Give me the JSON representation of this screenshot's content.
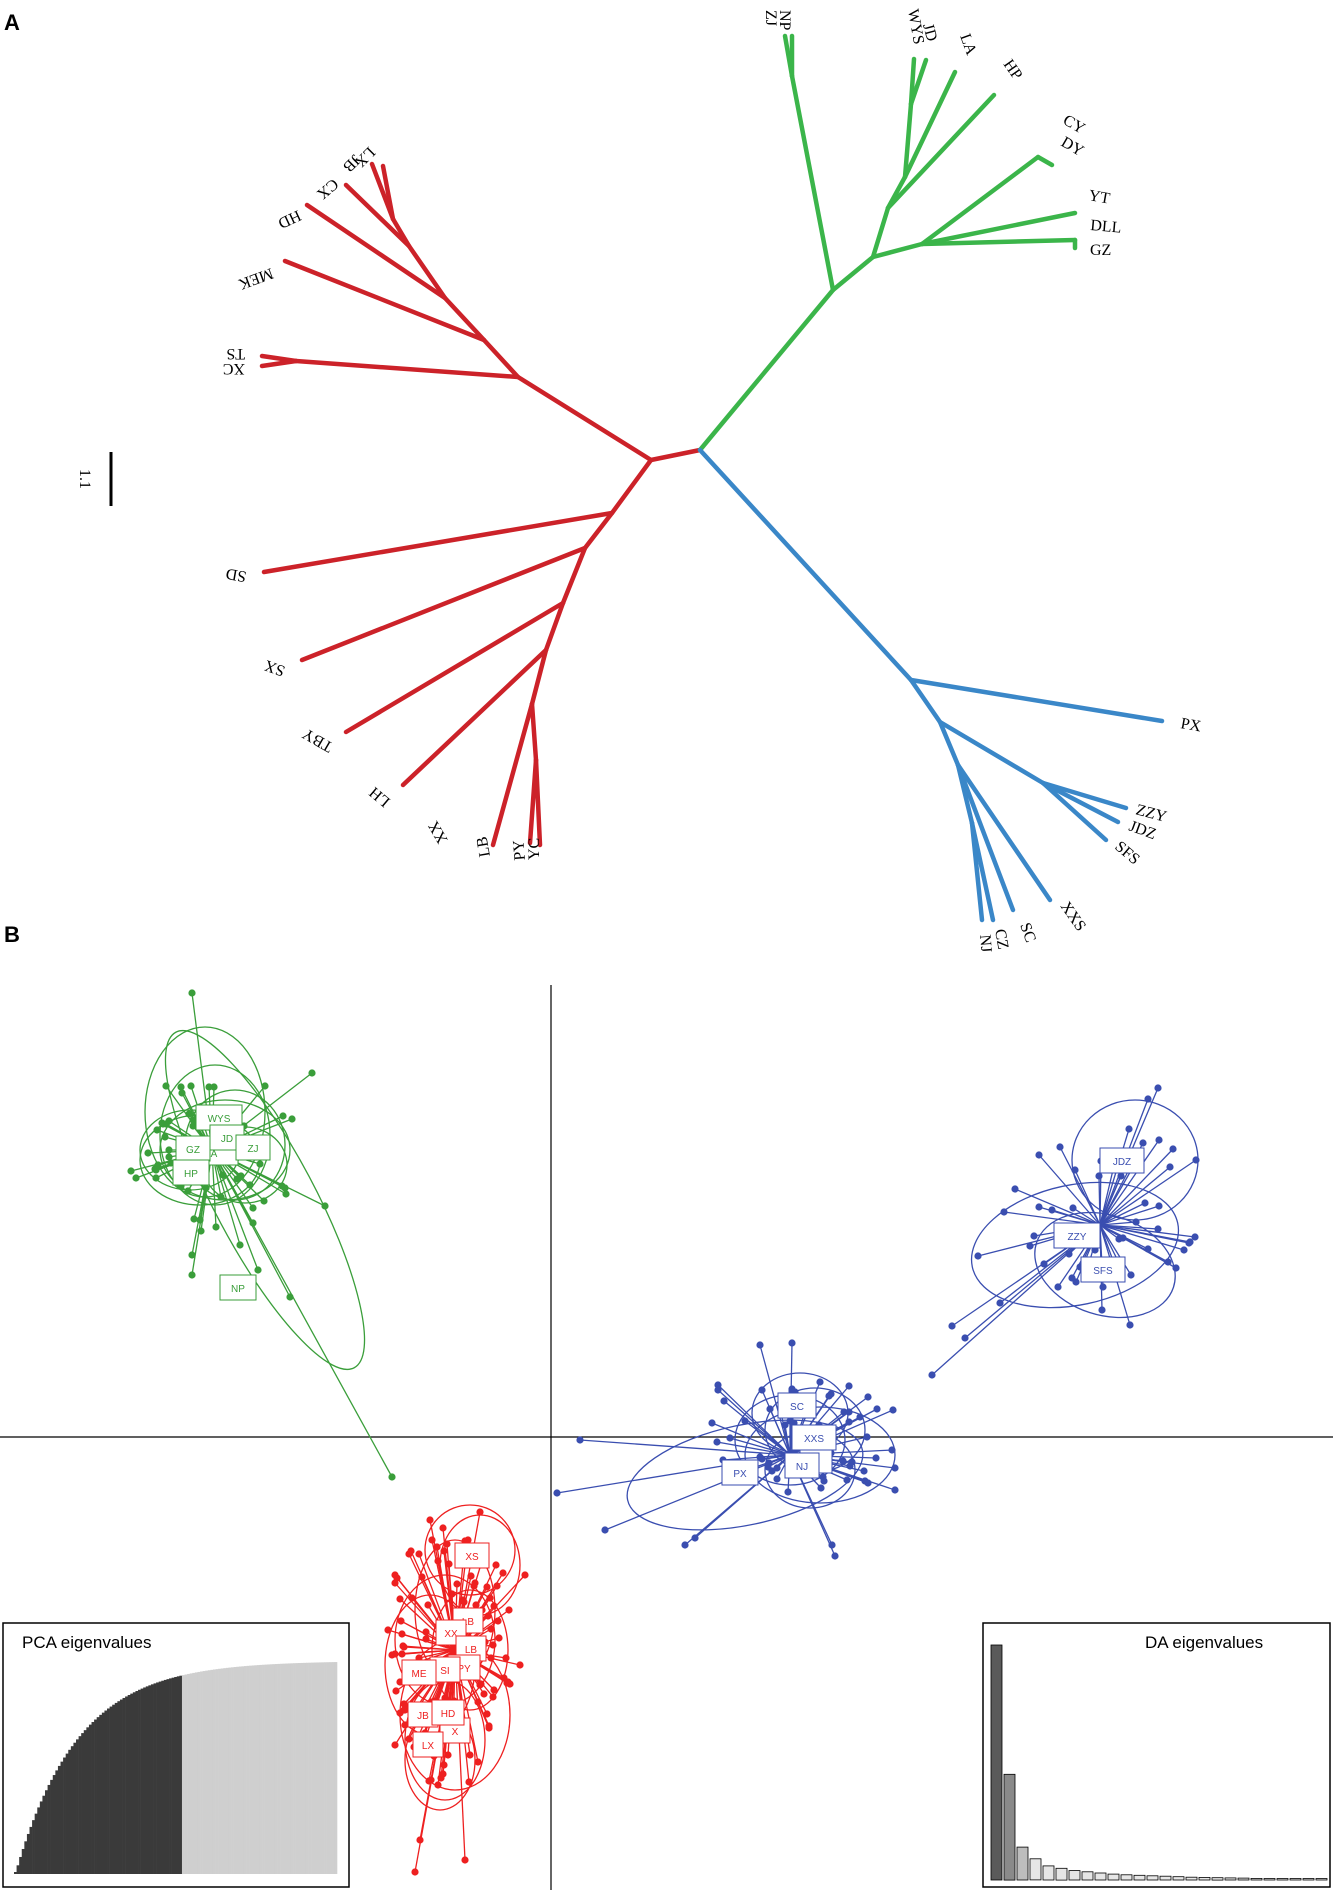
{
  "panels": {
    "a_label": "A",
    "b_label": "B"
  },
  "scale_bar": {
    "label": "1.1"
  },
  "colors": {
    "red": "#cc2229",
    "green": "#3bb54a",
    "blue": "#3a87c8",
    "dapc_red": "#ee2020",
    "dapc_green": "#3a9e3a",
    "dapc_blue": "#3a4eb0",
    "pca_dark": "#3a3a3a",
    "pca_light": "#cfcfcf"
  },
  "tree": {
    "red_tips": [
      "LX",
      "JB",
      "CX",
      "HD",
      "MEK",
      "TS",
      "XC",
      "SD",
      "SX",
      "TBY",
      "LH",
      "XX",
      "LB",
      "PY",
      "YC"
    ],
    "green_tips": [
      "NP",
      "ZJ",
      "WYS",
      "JD",
      "LA",
      "HP",
      "CY",
      "DY",
      "YT",
      "DLL",
      "GZ"
    ],
    "blue_tips": [
      "PX",
      "ZZY",
      "JDZ",
      "SFS",
      "XXS",
      "SC",
      "CZ",
      "NJ"
    ]
  },
  "dapc": {
    "green_groups": [
      "WYS",
      "JD",
      "GZ",
      "ZJ",
      "HP",
      "A",
      "NP"
    ],
    "blue_groups": [
      "JDZ",
      "ZZY",
      "SFS",
      "SC",
      "XXS",
      "PX",
      "NJ",
      "Z"
    ],
    "red_groups": [
      "XS",
      "XX",
      "LB",
      "ME",
      "SI",
      "PY",
      "JB",
      "HD",
      "LX",
      "X"
    ],
    "pca_title": "PCA eigenvalues",
    "da_title": "DA eigenvalues",
    "pca_retained": 65,
    "pca_total": 125,
    "da_values": [
      1.0,
      0.45,
      0.14,
      0.09,
      0.06,
      0.05,
      0.04,
      0.035,
      0.03,
      0.025,
      0.022,
      0.02,
      0.018,
      0.016,
      0.014,
      0.012,
      0.011,
      0.01,
      0.009,
      0.008,
      0.007,
      0.006,
      0.005,
      0.004,
      0.003,
      0.002
    ]
  }
}
